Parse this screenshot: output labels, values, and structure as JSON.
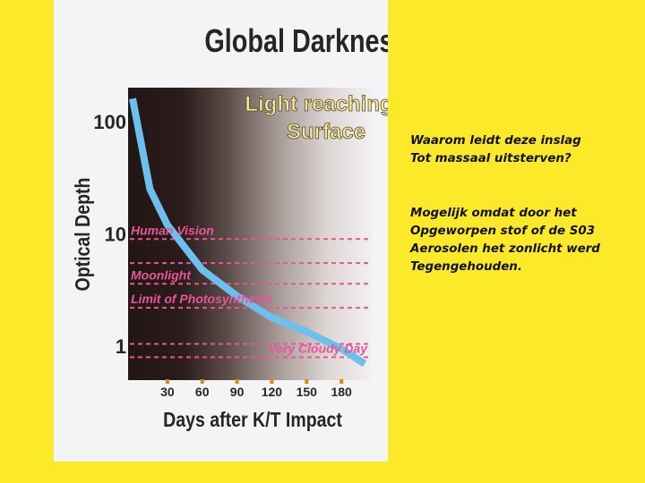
{
  "chart_data": {
    "type": "line",
    "title": "Global Darkness",
    "xlabel": "Days after K/T Impact",
    "ylabel": "Optical Depth",
    "y_scale": "log",
    "x_ticks": [
      "30",
      "60",
      "90",
      "120",
      "150",
      "180"
    ],
    "y_ticks": [
      "100",
      "10",
      "1"
    ],
    "xlim": [
      0,
      210
    ],
    "ylim": [
      0.5,
      200
    ],
    "background_label": [
      "Light reaching",
      "Surface"
    ],
    "series": [
      {
        "color": "#6cc0ec",
        "x": [
          0,
          15,
          30,
          60,
          90,
          120,
          150,
          180,
          200
        ],
        "y": [
          160,
          25,
          12,
          4.8,
          2.8,
          1.8,
          1.35,
          0.95,
          0.7
        ]
      }
    ],
    "thresholds": [
      {
        "label": "Human Vision",
        "y": 9,
        "color": "#e8559a"
      },
      {
        "label": "",
        "y": 5.5,
        "color": "#e8559a"
      },
      {
        "label": "Moonlight",
        "y": 3.6,
        "color": "#e8559a"
      },
      {
        "label": "Limit of Photosynthesis",
        "y": 2.2,
        "color": "#e8559a"
      },
      {
        "label": "",
        "y": 1.05,
        "color": "#e8559a"
      },
      {
        "label": "Very Cloudy Day",
        "y": 0.8,
        "color": "#e8559a"
      }
    ]
  },
  "side_text": {
    "question": [
      "Waarom leidt deze inslag",
      "Tot massaal uitsterven?"
    ],
    "explanation": [
      "Mogelijk omdat door het",
      "Opgeworpen stof of de S03",
      "Aerosolen het zonlicht werd",
      "Tegengehouden."
    ]
  }
}
